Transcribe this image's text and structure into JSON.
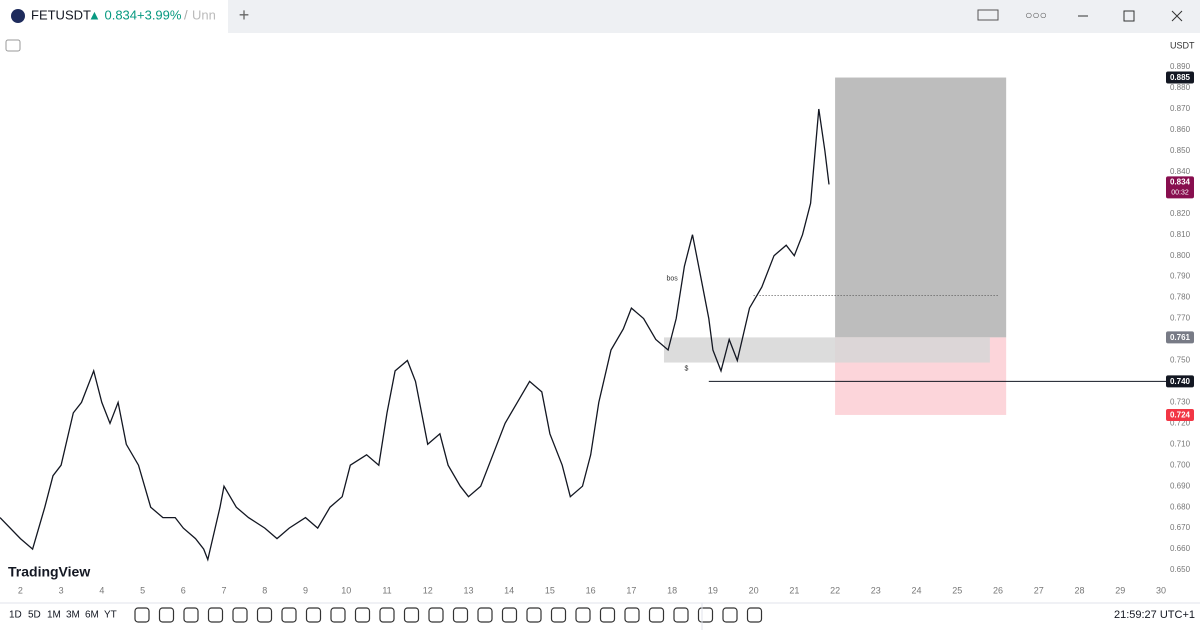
{
  "window": {
    "symbol": "FETUSDT",
    "change_arrow_price": "▲ 0.834",
    "change_pct": "+3.99%",
    "separator": "/",
    "layout_name": "Unn"
  },
  "toolbar": {
    "ranges": [
      "1D",
      "5D",
      "1M",
      "3M",
      "6M",
      "YT"
    ],
    "clock": "21:59:27 UTC+1"
  },
  "price_axis": {
    "currency": "USDT"
  },
  "logo": "TradingView",
  "chart_data": {
    "type": "line",
    "color": "#131722",
    "x": [
      1.5,
      2,
      2.3,
      2.6,
      2.8,
      3.0,
      3.3,
      3.5,
      3.8,
      4.0,
      4.2,
      4.4,
      4.6,
      4.9,
      5.2,
      5.5,
      5.8,
      6.0,
      6.3,
      6.5,
      6.6,
      6.9,
      7.0,
      7.3,
      7.6,
      8.0,
      8.3,
      8.6,
      9.0,
      9.3,
      9.6,
      9.9,
      10.1,
      10.5,
      10.8,
      11.0,
      11.2,
      11.5,
      11.7,
      12.0,
      12.3,
      12.5,
      12.8,
      13.0,
      13.3,
      13.6,
      13.9,
      14.2,
      14.5,
      14.8,
      15.0,
      15.3,
      15.5,
      15.8,
      16.0,
      16.2,
      16.5,
      16.8,
      17.0,
      17.3,
      17.6,
      17.9,
      18.1,
      18.3,
      18.5,
      18.7,
      18.9,
      19.0,
      19.2,
      19.4,
      19.6,
      19.9,
      20.2,
      20.5,
      20.8,
      21.0,
      21.2,
      21.4,
      21.6,
      21.75,
      21.85
    ],
    "values": [
      0.675,
      0.665,
      0.66,
      0.68,
      0.695,
      0.7,
      0.725,
      0.73,
      0.745,
      0.73,
      0.72,
      0.73,
      0.71,
      0.7,
      0.68,
      0.675,
      0.675,
      0.67,
      0.665,
      0.66,
      0.655,
      0.68,
      0.69,
      0.68,
      0.675,
      0.67,
      0.665,
      0.67,
      0.675,
      0.67,
      0.68,
      0.685,
      0.7,
      0.705,
      0.7,
      0.725,
      0.745,
      0.75,
      0.74,
      0.71,
      0.715,
      0.7,
      0.69,
      0.685,
      0.69,
      0.705,
      0.72,
      0.73,
      0.74,
      0.735,
      0.715,
      0.7,
      0.685,
      0.69,
      0.705,
      0.73,
      0.755,
      0.765,
      0.775,
      0.77,
      0.76,
      0.755,
      0.77,
      0.795,
      0.81,
      0.79,
      0.77,
      0.755,
      0.745,
      0.76,
      0.75,
      0.775,
      0.785,
      0.8,
      0.805,
      0.8,
      0.81,
      0.825,
      0.87,
      0.85,
      0.834
    ],
    "xlim": [
      1.5,
      30.05
    ],
    "ylim": [
      0.6357,
      0.9053
    ],
    "xticks": [
      2,
      3,
      4,
      5,
      6,
      7,
      8,
      9,
      10,
      11,
      12,
      13,
      14,
      15,
      16,
      17,
      18,
      19,
      20,
      21,
      22,
      23,
      24,
      25,
      26,
      27,
      28,
      29,
      30
    ],
    "yticks": [
      {
        "value": 0.65,
        "label": "0.650"
      },
      {
        "value": 0.66,
        "label": "0.660"
      },
      {
        "value": 0.67,
        "label": "0.670"
      },
      {
        "value": 0.68,
        "label": "0.680"
      },
      {
        "value": 0.69,
        "label": "0.690"
      },
      {
        "value": 0.7,
        "label": "0.700"
      },
      {
        "value": 0.71,
        "label": "0.710"
      },
      {
        "value": 0.72,
        "label": "0.720"
      },
      {
        "value": 0.73,
        "label": "0.730"
      },
      {
        "value": 0.75,
        "label": "0.750"
      },
      {
        "value": 0.77,
        "label": "0.770"
      },
      {
        "value": 0.78,
        "label": "0.780"
      },
      {
        "value": 0.79,
        "label": "0.790"
      },
      {
        "value": 0.8,
        "label": "0.800"
      },
      {
        "value": 0.81,
        "label": "0.810"
      },
      {
        "value": 0.82,
        "label": "0.820"
      },
      {
        "value": 0.84,
        "label": "0.840"
      },
      {
        "value": 0.85,
        "label": "0.850"
      },
      {
        "value": 0.86,
        "label": "0.860"
      },
      {
        "value": 0.87,
        "label": "0.870"
      },
      {
        "value": 0.88,
        "label": "0.880"
      },
      {
        "value": 0.89,
        "label": "0.890"
      }
    ],
    "position": {
      "start": 22,
      "end": 26.2,
      "target": {
        "value": 0.885,
        "label": "0.885"
      },
      "entry": {
        "value": 0.761,
        "label": "0.761"
      },
      "stop": {
        "value": 0.724,
        "label": "0.724"
      }
    },
    "zone": {
      "start": 17.8,
      "end": 25.8,
      "top": 0.761,
      "bottom": 0.749
    },
    "level": {
      "start": 18.9,
      "value": 0.74,
      "label": "0.740"
    },
    "dotted_level": {
      "start": 20.0,
      "end": 26.0,
      "value": 0.781
    },
    "last_price": {
      "value": 0.834,
      "label": "0.834",
      "countdown": "00:32"
    },
    "annotations": [
      {
        "x": 18.0,
        "value": 0.789,
        "text": "bos"
      },
      {
        "x": 18.35,
        "value": 0.746,
        "text": "$"
      }
    ]
  }
}
